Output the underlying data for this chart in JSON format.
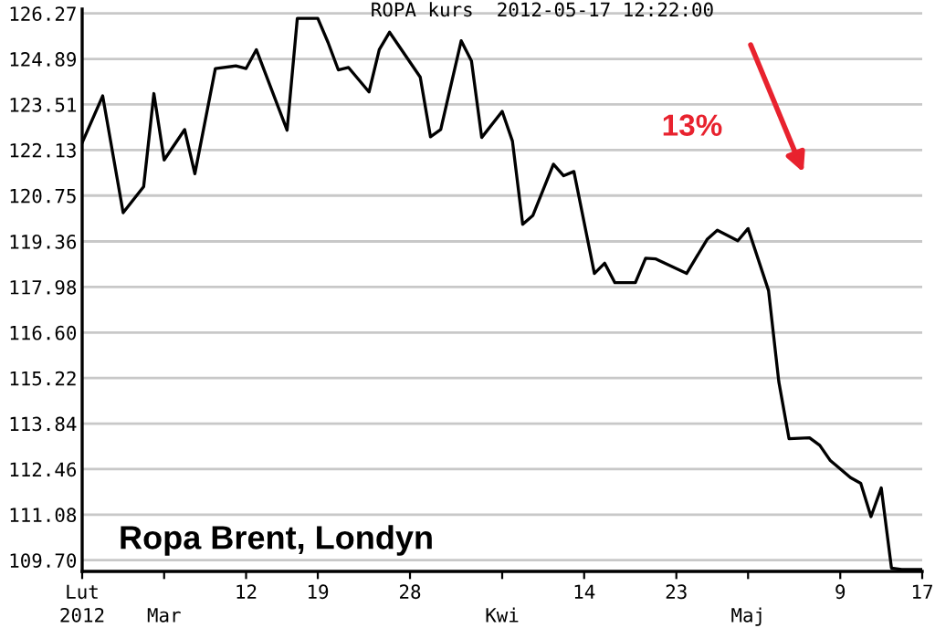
{
  "chart_data": {
    "type": "line",
    "title": "ROPA kurs  2012-05-17 12:22:00",
    "annotations": [
      "13%",
      "Ropa Brent, Londyn"
    ],
    "x": [
      "2012-02-25",
      "2012-02-27",
      "2012-02-29",
      "2012-03-02",
      "2012-03-03",
      "2012-03-04",
      "2012-03-06",
      "2012-03-07",
      "2012-03-09",
      "2012-03-11",
      "2012-03-12",
      "2012-03-13",
      "2012-03-16",
      "2012-03-17",
      "2012-03-19",
      "2012-03-20",
      "2012-03-21",
      "2012-03-22",
      "2012-03-24",
      "2012-03-25",
      "2012-03-26",
      "2012-03-29",
      "2012-03-30",
      "2012-03-31",
      "2012-04-02",
      "2012-04-03",
      "2012-04-04",
      "2012-04-06",
      "2012-04-07",
      "2012-04-08",
      "2012-04-09",
      "2012-04-11",
      "2012-04-12",
      "2012-04-13",
      "2012-04-15",
      "2012-04-16",
      "2012-04-17",
      "2012-04-19",
      "2012-04-20",
      "2012-04-21",
      "2012-04-24",
      "2012-04-26",
      "2012-04-27",
      "2012-04-29",
      "2012-04-30",
      "2012-05-02",
      "2012-05-03",
      "2012-05-04",
      "2012-05-06",
      "2012-05-07",
      "2012-05-08",
      "2012-05-10",
      "2012-05-11",
      "2012-05-12",
      "2012-05-13",
      "2012-05-14",
      "2012-05-15",
      "2012-05-17"
    ],
    "series": [
      {
        "color": "#000000",
        "values": [
          122.35,
          123.77,
          120.23,
          121.02,
          123.84,
          121.83,
          122.75,
          121.41,
          124.6,
          124.68,
          124.6,
          125.17,
          122.73,
          126.12,
          126.12,
          125.39,
          124.56,
          124.63,
          123.89,
          125.17,
          125.7,
          124.34,
          122.53,
          122.75,
          125.44,
          124.83,
          122.51,
          123.3,
          122.4,
          119.88,
          120.15,
          121.7,
          121.35,
          121.48,
          118.39,
          118.7,
          118.11,
          118.11,
          118.85,
          118.83,
          118.39,
          119.42,
          119.7,
          119.38,
          119.75,
          117.87,
          115.11,
          113.38,
          113.41,
          113.18,
          112.73,
          112.2,
          112.03,
          111.02,
          111.89,
          109.46,
          109.42,
          109.42
        ]
      }
    ],
    "xlim": [
      "2012-02-25",
      "2012-05-17"
    ],
    "xticks": [
      {
        "value": "2012-02-25",
        "label": "Lut"
      },
      {
        "value": "2012-03-04",
        "label": null
      },
      {
        "value": "2012-03-12",
        "label": "12"
      },
      {
        "value": "2012-03-19",
        "label": "19"
      },
      {
        "value": "2012-03-28",
        "label": "28"
      },
      {
        "value": "2012-04-06",
        "label": null
      },
      {
        "value": "2012-04-14",
        "label": "14"
      },
      {
        "value": "2012-04-23",
        "label": "23"
      },
      {
        "value": "2012-04-30",
        "label": null
      },
      {
        "value": "2012-05-09",
        "label": "9"
      },
      {
        "value": "2012-05-17",
        "label": "17"
      }
    ],
    "x2lim": [
      "2012-02-25",
      "2012-05-17"
    ],
    "x2ticks": [
      {
        "value": "2012-02-25",
        "label": "2012"
      },
      {
        "value": "2012-03-04",
        "label": "Mar"
      },
      {
        "value": "2012-04-06",
        "label": "Kwi"
      },
      {
        "value": "2012-04-30",
        "label": "Maj"
      }
    ],
    "ylim": [
      109.36,
      126.4
    ],
    "yticks": [
      {
        "value": 109.7,
        "label": "109.70"
      },
      111.08,
      112.46,
      113.84,
      115.22,
      {
        "value": 116.6,
        "label": "116.60"
      },
      117.98,
      119.36,
      120.75,
      122.13,
      123.51,
      124.89,
      126.27
    ],
    "grid": "y",
    "marker": "none",
    "line_style": "solid",
    "legend": false
  }
}
